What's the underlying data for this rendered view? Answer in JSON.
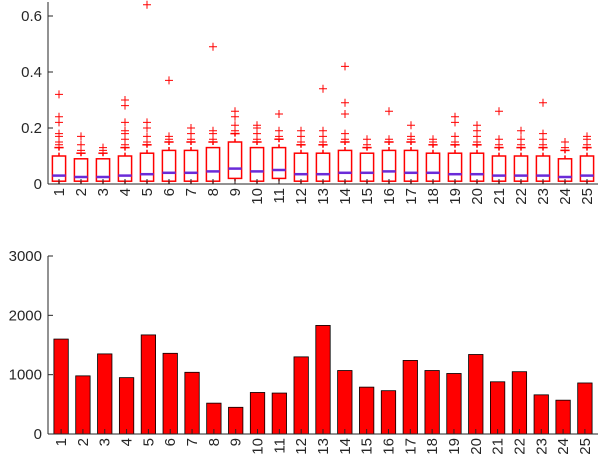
{
  "colors": {
    "box": "#ff0000",
    "outlier": "#ff0000",
    "median": "#6a2bd8",
    "bar": "#ff0000",
    "axis": "#262626"
  },
  "chart_data": [
    {
      "type": "box",
      "categories": [
        "1",
        "2",
        "3",
        "4",
        "5",
        "6",
        "7",
        "8",
        "9",
        "10",
        "11",
        "12",
        "13",
        "14",
        "15",
        "16",
        "17",
        "18",
        "19",
        "20",
        "21",
        "22",
        "23",
        "24",
        "25"
      ],
      "ylim": [
        0,
        0.65
      ],
      "yticks": [
        0,
        0.2,
        0.4,
        0.6
      ],
      "ytick_labels": [
        "0",
        "0.2",
        "0.4",
        "0.6"
      ],
      "grid": false,
      "boxes": [
        {
          "q1": 0.01,
          "median": 0.03,
          "q3": 0.1,
          "whisker_low": 0,
          "whisker_high": 0.13,
          "outliers": [
            0.14,
            0.15,
            0.17,
            0.18,
            0.22,
            0.24,
            0.32
          ]
        },
        {
          "q1": 0.01,
          "median": 0.025,
          "q3": 0.09,
          "whisker_low": 0,
          "whisker_high": 0.11,
          "outliers": [
            0.12,
            0.14,
            0.17
          ]
        },
        {
          "q1": 0.01,
          "median": 0.025,
          "q3": 0.09,
          "whisker_low": 0,
          "whisker_high": 0.11,
          "outliers": [
            0.12,
            0.13
          ]
        },
        {
          "q1": 0.01,
          "median": 0.03,
          "q3": 0.1,
          "whisker_low": 0,
          "whisker_high": 0.13,
          "outliers": [
            0.14,
            0.16,
            0.18,
            0.19,
            0.22,
            0.28,
            0.3
          ]
        },
        {
          "q1": 0.01,
          "median": 0.035,
          "q3": 0.11,
          "whisker_low": 0,
          "whisker_high": 0.14,
          "outliers": [
            0.15,
            0.17,
            0.2,
            0.22,
            0.64
          ]
        },
        {
          "q1": 0.01,
          "median": 0.04,
          "q3": 0.12,
          "whisker_low": 0,
          "whisker_high": 0.15,
          "outliers": [
            0.16,
            0.17,
            0.37
          ]
        },
        {
          "q1": 0.01,
          "median": 0.04,
          "q3": 0.12,
          "whisker_low": 0,
          "whisker_high": 0.15,
          "outliers": [
            0.16,
            0.18,
            0.2
          ]
        },
        {
          "q1": 0.01,
          "median": 0.045,
          "q3": 0.13,
          "whisker_low": 0,
          "whisker_high": 0.15,
          "outliers": [
            0.16,
            0.18,
            0.19,
            0.49
          ]
        },
        {
          "q1": 0.02,
          "median": 0.055,
          "q3": 0.15,
          "whisker_low": 0,
          "whisker_high": 0.18,
          "outliers": [
            0.19,
            0.21,
            0.24,
            0.26
          ]
        },
        {
          "q1": 0.01,
          "median": 0.045,
          "q3": 0.13,
          "whisker_low": 0,
          "whisker_high": 0.15,
          "outliers": [
            0.16,
            0.18,
            0.2,
            0.21
          ]
        },
        {
          "q1": 0.02,
          "median": 0.05,
          "q3": 0.13,
          "whisker_low": 0,
          "whisker_high": 0.16,
          "outliers": [
            0.17,
            0.19,
            0.25
          ]
        },
        {
          "q1": 0.01,
          "median": 0.035,
          "q3": 0.11,
          "whisker_low": 0,
          "whisker_high": 0.14,
          "outliers": [
            0.15,
            0.17,
            0.19
          ]
        },
        {
          "q1": 0.01,
          "median": 0.035,
          "q3": 0.11,
          "whisker_low": 0,
          "whisker_high": 0.14,
          "outliers": [
            0.15,
            0.17,
            0.19,
            0.34
          ]
        },
        {
          "q1": 0.01,
          "median": 0.04,
          "q3": 0.12,
          "whisker_low": 0,
          "whisker_high": 0.15,
          "outliers": [
            0.16,
            0.18,
            0.25,
            0.29,
            0.42
          ]
        },
        {
          "q1": 0.01,
          "median": 0.04,
          "q3": 0.11,
          "whisker_low": 0,
          "whisker_high": 0.13,
          "outliers": [
            0.14,
            0.16
          ]
        },
        {
          "q1": 0.01,
          "median": 0.045,
          "q3": 0.12,
          "whisker_low": 0,
          "whisker_high": 0.15,
          "outliers": [
            0.16,
            0.26
          ]
        },
        {
          "q1": 0.01,
          "median": 0.04,
          "q3": 0.12,
          "whisker_low": 0,
          "whisker_high": 0.15,
          "outliers": [
            0.16,
            0.17,
            0.21
          ]
        },
        {
          "q1": 0.01,
          "median": 0.04,
          "q3": 0.11,
          "whisker_low": 0,
          "whisker_high": 0.14,
          "outliers": [
            0.15,
            0.16
          ]
        },
        {
          "q1": 0.01,
          "median": 0.035,
          "q3": 0.11,
          "whisker_low": 0,
          "whisker_high": 0.14,
          "outliers": [
            0.15,
            0.17,
            0.22,
            0.24
          ]
        },
        {
          "q1": 0.01,
          "median": 0.035,
          "q3": 0.11,
          "whisker_low": 0,
          "whisker_high": 0.14,
          "outliers": [
            0.15,
            0.17,
            0.19,
            0.21
          ]
        },
        {
          "q1": 0.01,
          "median": 0.03,
          "q3": 0.1,
          "whisker_low": 0,
          "whisker_high": 0.13,
          "outliers": [
            0.14,
            0.16,
            0.26
          ]
        },
        {
          "q1": 0.01,
          "median": 0.03,
          "q3": 0.1,
          "whisker_low": 0,
          "whisker_high": 0.13,
          "outliers": [
            0.14,
            0.16,
            0.19
          ]
        },
        {
          "q1": 0.01,
          "median": 0.03,
          "q3": 0.1,
          "whisker_low": 0,
          "whisker_high": 0.13,
          "outliers": [
            0.14,
            0.16,
            0.18,
            0.29
          ]
        },
        {
          "q1": 0.01,
          "median": 0.025,
          "q3": 0.09,
          "whisker_low": 0,
          "whisker_high": 0.12,
          "outliers": [
            0.13,
            0.15
          ]
        },
        {
          "q1": 0.01,
          "median": 0.03,
          "q3": 0.1,
          "whisker_low": 0,
          "whisker_high": 0.13,
          "outliers": [
            0.14,
            0.16,
            0.17
          ]
        }
      ]
    },
    {
      "type": "bar",
      "categories": [
        "1",
        "2",
        "3",
        "4",
        "5",
        "6",
        "7",
        "8",
        "9",
        "10",
        "11",
        "12",
        "13",
        "14",
        "15",
        "16",
        "17",
        "18",
        "19",
        "20",
        "21",
        "22",
        "23",
        "24",
        "25"
      ],
      "values": [
        1600,
        980,
        1350,
        950,
        1670,
        1360,
        1040,
        520,
        450,
        700,
        690,
        1300,
        1830,
        1070,
        790,
        730,
        1240,
        1070,
        1020,
        1340,
        880,
        1050,
        660,
        570,
        860
      ],
      "ylim": [
        0,
        3000
      ],
      "yticks": [
        0,
        1000,
        2000,
        3000
      ],
      "ytick_labels": [
        "0",
        "1000",
        "2000",
        "3000"
      ],
      "grid": false
    }
  ]
}
